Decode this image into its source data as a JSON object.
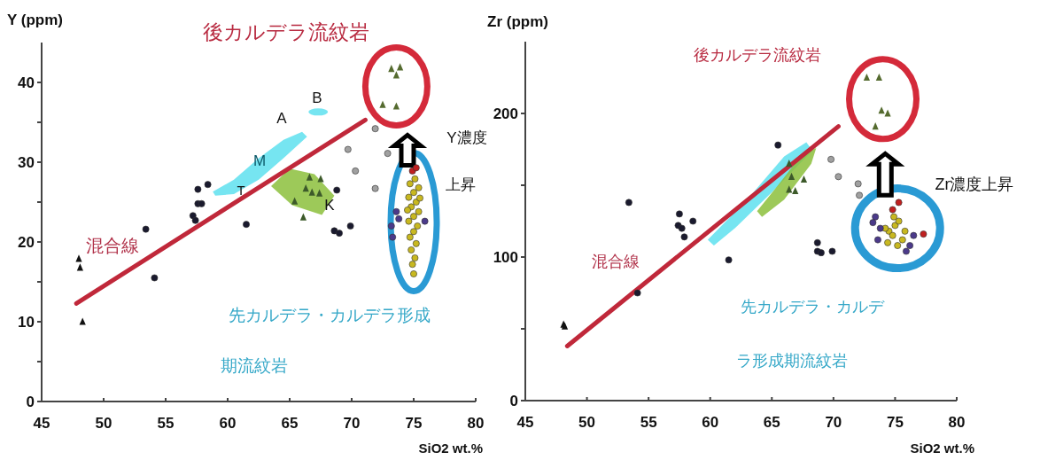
{
  "chart_data": [
    {
      "type": "scatter",
      "title": "後カルデラ流紋岩",
      "xlabel": "SiO2 wt.%",
      "ylabel": "Y (ppm)",
      "xlim": [
        45,
        80
      ],
      "ylim": [
        0,
        45
      ],
      "xticks": [
        45,
        50,
        55,
        60,
        65,
        70,
        75,
        80
      ],
      "yticks": [
        0,
        {
          "value": 5,
          "label": null
        },
        10,
        {
          "value": 15,
          "label": null
        },
        20,
        {
          "value": 25,
          "label": null
        },
        30,
        {
          "value": 35,
          "label": null
        },
        40
      ],
      "series": [
        {
          "type": "line",
          "color": "#c0283a",
          "marker": "none",
          "x": [
            47.8,
            71.1
          ],
          "values": [
            12.3,
            35.3
          ]
        },
        {
          "color": "#111111",
          "marker": "triangle",
          "x": [
            48.0,
            48.1,
            48.3
          ],
          "values": [
            17.9,
            16.8,
            10.0
          ]
        },
        {
          "color": "#1a1a2e",
          "marker": "circle",
          "x": [
            53.4,
            54.1,
            57.6,
            58.4,
            57.6,
            57.9,
            57.2,
            57.4,
            61.5,
            68.8,
            68.6,
            69.0,
            69.9
          ],
          "values": [
            21.6,
            15.5,
            26.6,
            27.2,
            24.8,
            24.8,
            23.3,
            22.7,
            22.2,
            26.5,
            21.4,
            21.1,
            22.0
          ]
        },
        {
          "color": "#a0a0a0",
          "marker": "circle",
          "x": [
            71.9,
            69.7,
            72.9,
            70.3,
            71.9
          ],
          "values": [
            34.2,
            31.6,
            31.1,
            28.9,
            26.7
          ]
        },
        {
          "color": "#3d5a2a",
          "marker": "triangle",
          "x": [
            66.6,
            67.5,
            66.3,
            66.8,
            65.4,
            66.1,
            67.4
          ],
          "values": [
            28.1,
            27.9,
            26.7,
            26.2,
            25.1,
            23.1,
            26.1
          ]
        },
        {
          "color": "#556b2f",
          "marker": "triangle",
          "x": [
            73.2,
            73.9,
            73.6,
            72.5,
            73.6
          ],
          "values": [
            41.7,
            41.9,
            40.9,
            37.2,
            37.0
          ]
        },
        {
          "color": "#c8b820",
          "marker": "circle",
          "x": [
            75.0,
            74.9,
            75.1,
            74.8,
            75.2,
            74.7,
            75.0,
            75.3,
            74.6,
            75.0,
            75.4,
            74.8,
            75.2,
            74.6,
            75.0,
            75.4,
            74.7,
            75.1,
            75.5,
            74.5
          ],
          "values": [
            16.0,
            17.2,
            18.0,
            19.0,
            19.8,
            20.6,
            21.3,
            22.0,
            22.6,
            23.2,
            23.8,
            24.4,
            25.0,
            25.6,
            26.2,
            26.8,
            27.3,
            27.9,
            25.5,
            24.0
          ]
        },
        {
          "color": "#4b3a8a",
          "marker": "circle",
          "x": [
            73.2,
            73.8,
            73.3,
            73.6,
            75.9
          ],
          "values": [
            22.0,
            22.9,
            20.6,
            23.8,
            22.6
          ]
        },
        {
          "color": "#c02020",
          "marker": "circle",
          "x": [
            74.9,
            75.2
          ],
          "values": [
            28.9,
            29.3
          ]
        }
      ],
      "annotations": [
        "混合線",
        "A",
        "B",
        "M",
        "T",
        "K",
        "Y濃度",
        "上昇",
        "先カルデラ・カルデラ形成",
        "期流紋岩"
      ]
    },
    {
      "type": "scatter",
      "title": "後カルデラ流紋岩",
      "xlabel": "SiO2 wt.%",
      "ylabel": "Zr (ppm)",
      "xlim": [
        45,
        80
      ],
      "ylim": [
        0,
        250
      ],
      "xticks": [
        45,
        50,
        55,
        60,
        65,
        70,
        75,
        80
      ],
      "yticks": [
        0,
        {
          "value": 50,
          "label": null
        },
        100,
        {
          "value": 150,
          "label": null
        },
        200
      ],
      "series": [
        {
          "type": "line",
          "color": "#c0283a",
          "marker": "none",
          "x": [
            48.4,
            70.4
          ],
          "values": [
            38,
            191
          ]
        },
        {
          "color": "#111111",
          "marker": "triangle",
          "x": [
            48.2,
            48.1
          ],
          "values": [
            51.8,
            53
          ]
        },
        {
          "color": "#1a1a2e",
          "marker": "circle",
          "x": [
            53.4,
            54.1,
            57.5,
            58.6,
            57.4,
            57.7,
            57.9,
            61.5,
            65.5,
            68.7,
            69.0,
            69.9,
            68.7
          ],
          "values": [
            138,
            75,
            130,
            125,
            122,
            120,
            114,
            98,
            178,
            104,
            103,
            104,
            110
          ]
        },
        {
          "color": "#a0a0a0",
          "marker": "circle",
          "x": [
            69.8,
            70.4,
            72.0,
            72.1
          ],
          "values": [
            168,
            156,
            151,
            143
          ]
        },
        {
          "color": "#3d5a2a",
          "marker": "triangle",
          "x": [
            66.4,
            66.6,
            66.4,
            67.6,
            66.9
          ],
          "values": [
            165,
            156,
            147,
            154,
            146
          ]
        },
        {
          "color": "#556b2f",
          "marker": "triangle",
          "x": [
            72.7,
            73.7,
            73.9,
            74.4,
            73.4
          ],
          "values": [
            225,
            225,
            202,
            200,
            191
          ]
        },
        {
          "color": "#c8b820",
          "marker": "circle",
          "x": [
            74.5,
            75.0,
            74.8,
            75.3,
            74.2,
            75.6,
            74.9,
            75.8,
            74.4,
            75.2
          ],
          "values": [
            118,
            122,
            115,
            125,
            120,
            112,
            128,
            118,
            110,
            108
          ]
        },
        {
          "color": "#4b3a8a",
          "marker": "circle",
          "x": [
            73.4,
            73.8,
            73.6,
            76.5,
            76.2,
            73.2,
            75.9
          ],
          "values": [
            128,
            120,
            112,
            115,
            108,
            124,
            104
          ]
        },
        {
          "color": "#c02020",
          "marker": "circle",
          "x": [
            75.3,
            74.8,
            77.3
          ],
          "values": [
            138,
            133,
            116
          ]
        }
      ],
      "annotations": [
        "混合線",
        "Zr濃度上昇",
        "先カルデラ・カルデ",
        "ラ形成期流紋岩"
      ]
    }
  ]
}
